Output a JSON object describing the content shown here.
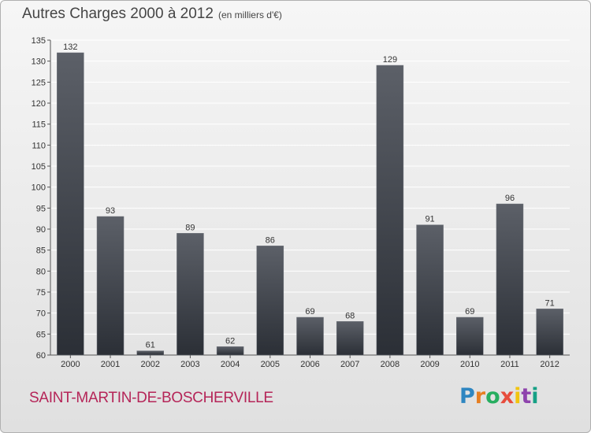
{
  "header": {
    "title": "Autres Charges 2000 à 2012",
    "unit": "(en milliers d'€)"
  },
  "footer": {
    "commune": "SAINT-MARTIN-DE-BOSCHERVILLE",
    "logo_letters": [
      {
        "ch": "P",
        "color": "#2e86c1"
      },
      {
        "ch": "r",
        "color": "#e67e22"
      },
      {
        "ch": "o",
        "color": "#27ae60"
      },
      {
        "ch": "x",
        "color": "#e74c3c"
      },
      {
        "ch": "i",
        "color": "#f1c40f"
      },
      {
        "ch": "t",
        "color": "#8e44ad"
      },
      {
        "ch": "i",
        "color": "#16a085"
      }
    ]
  },
  "colors": {
    "bar_top": "#5c6068",
    "bar_bottom": "#2b2f36",
    "gridline": "#ffffff",
    "accent": "#b52558"
  },
  "chart_data": {
    "type": "bar",
    "title": "Autres Charges 2000 à 2012",
    "subtitle": "(en milliers d'€)",
    "xlabel": "",
    "ylabel": "",
    "categories": [
      "2000",
      "2001",
      "2002",
      "2003",
      "2004",
      "2005",
      "2006",
      "2007",
      "2008",
      "2009",
      "2010",
      "2011",
      "2012"
    ],
    "values": [
      132,
      93,
      61,
      89,
      62,
      86,
      69,
      68,
      129,
      91,
      69,
      96,
      71
    ],
    "ylim": [
      60,
      135
    ],
    "yticks": [
      60,
      65,
      70,
      75,
      80,
      85,
      90,
      95,
      100,
      105,
      110,
      115,
      120,
      125,
      130,
      135
    ],
    "grid": true,
    "data_labels": true
  }
}
